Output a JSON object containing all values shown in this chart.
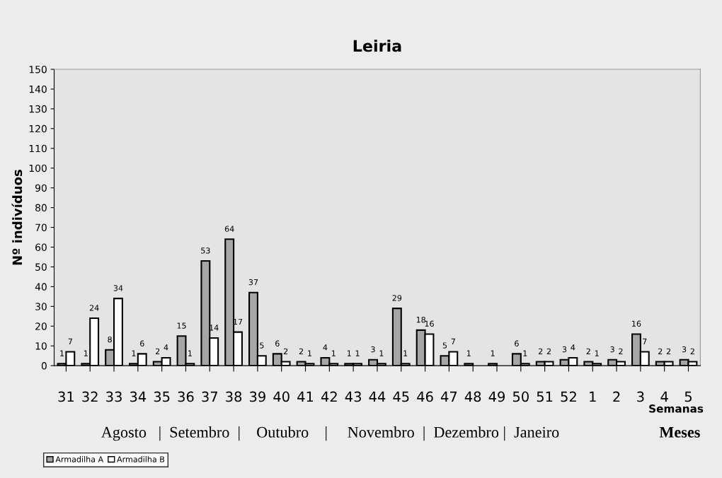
{
  "chart_data": {
    "type": "bar",
    "title": "Leiria",
    "ylabel": "Nº indivíduos",
    "xlabel": "Semanas",
    "categories": [
      "31",
      "32",
      "33",
      "34",
      "35",
      "36",
      "37",
      "38",
      "39",
      "40",
      "41",
      "42",
      "43",
      "44",
      "45",
      "46",
      "47",
      "48",
      "49",
      "50",
      "51",
      "52",
      "1",
      "2",
      "3",
      "4",
      "5"
    ],
    "series": [
      {
        "name": "Armadilha A",
        "color": "#a6a6a6",
        "values": [
          1,
          1,
          8,
          1,
          2,
          15,
          53,
          64,
          37,
          6,
          2,
          4,
          1,
          3,
          29,
          18,
          5,
          1,
          1,
          6,
          2,
          3,
          2,
          3,
          16,
          2,
          3
        ]
      },
      {
        "name": "Armadilha B",
        "color": "#ffffff",
        "values": [
          7,
          24,
          34,
          6,
          4,
          1,
          14,
          17,
          5,
          2,
          1,
          1,
          1,
          1,
          1,
          16,
          7,
          null,
          null,
          1,
          2,
          4,
          1,
          2,
          7,
          2,
          2
        ]
      }
    ],
    "ylim": [
      0,
      150
    ],
    "yticks": [
      0,
      10,
      20,
      30,
      40,
      50,
      60,
      70,
      80,
      90,
      100,
      110,
      120,
      130,
      140,
      150
    ],
    "data_labels": true,
    "legend": "bottom left",
    "grid": false,
    "annotations": [
      "Agosto   |  Setembro  |    Outubro    |     Novembro  |  Dezembro |  Janeiro",
      "Meses"
    ]
  }
}
